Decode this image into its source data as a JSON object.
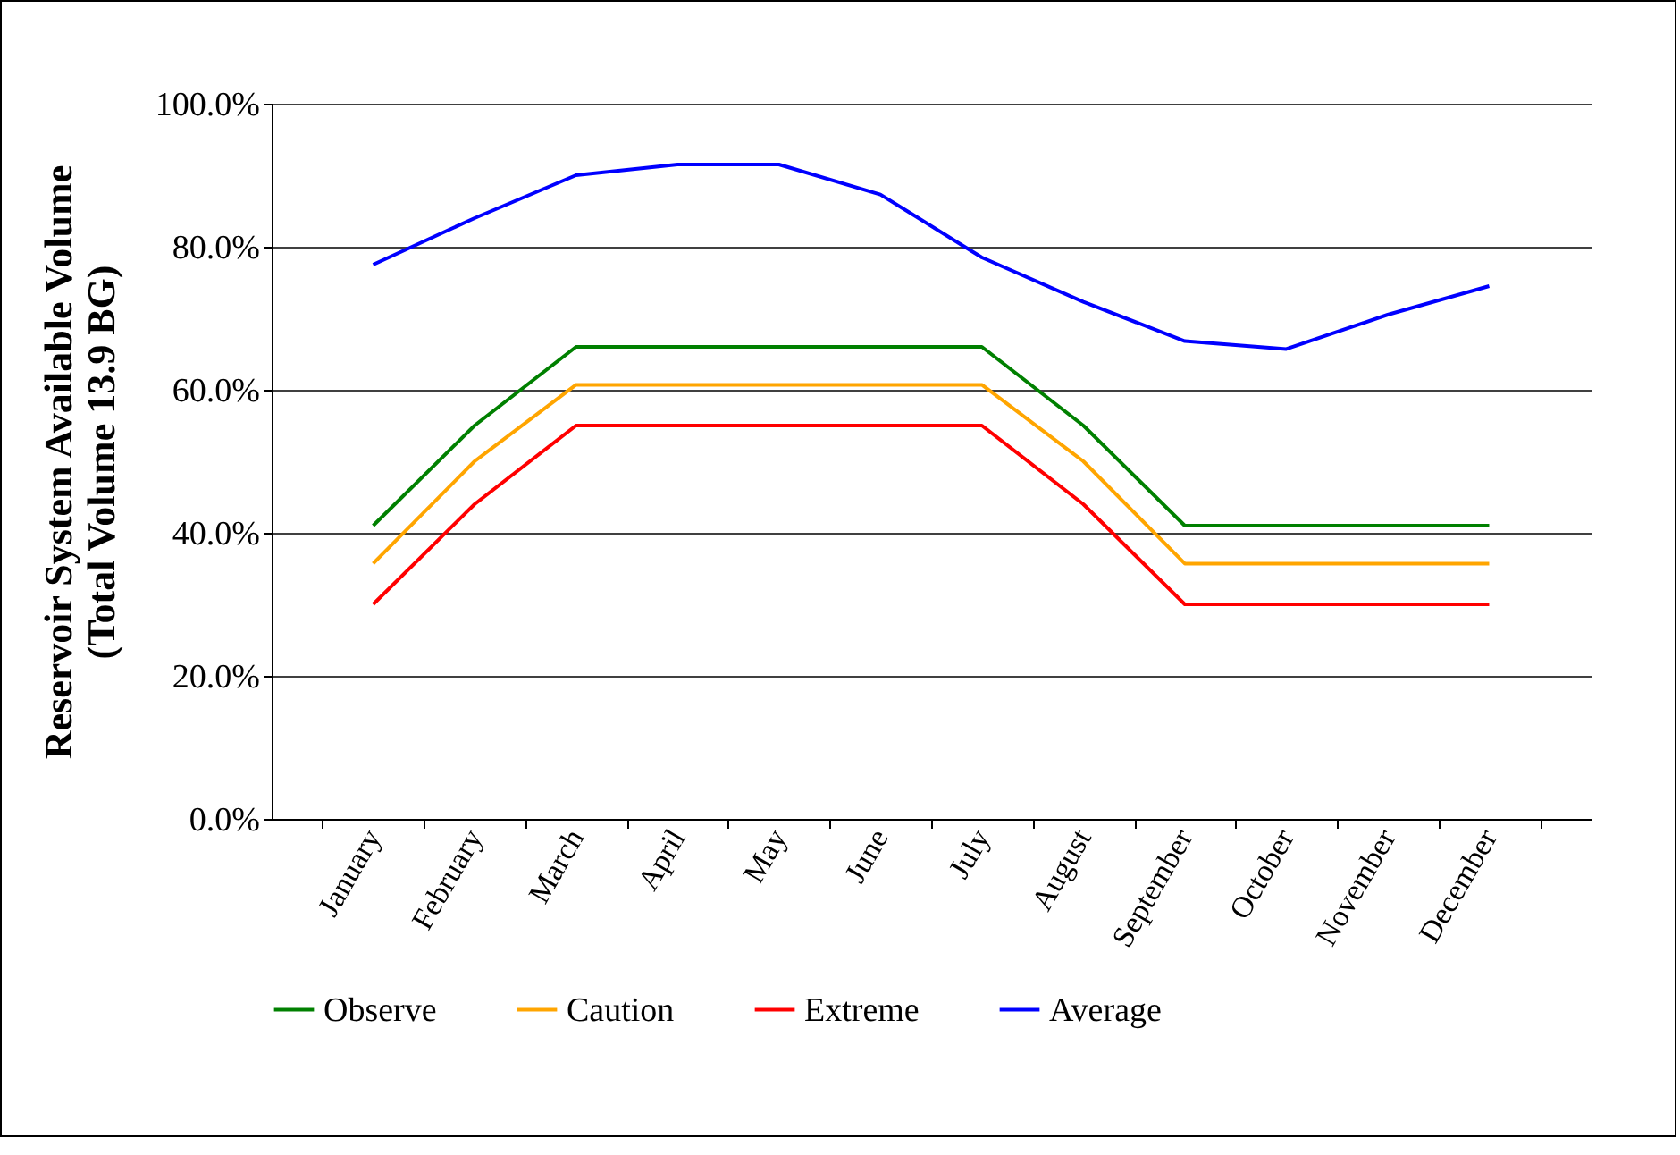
{
  "chart_data": {
    "type": "line",
    "ylabel": "Reservoir System Available Volume\n(Total Volume 13.9 BG)",
    "categories": [
      "January",
      "February",
      "March",
      "April",
      "May",
      "June",
      "July",
      "August",
      "September",
      "October",
      "November",
      "December"
    ],
    "series": [
      {
        "name": "Observe",
        "color": "#008000",
        "values": [
          41,
          55,
          66,
          66,
          66,
          66,
          66,
          55,
          41,
          41,
          41,
          41
        ]
      },
      {
        "name": "Caution",
        "color": "#ffa500",
        "values": [
          35.7,
          50,
          60.7,
          60.7,
          60.7,
          60.7,
          60.7,
          50,
          35.7,
          35.7,
          35.7,
          35.7
        ]
      },
      {
        "name": "Extreme",
        "color": "#ff0000",
        "values": [
          30,
          44,
          55,
          55,
          55,
          55,
          55,
          44,
          30,
          30,
          30,
          30
        ]
      },
      {
        "name": "Average",
        "color": "#0000ff",
        "values": [
          77.5,
          84,
          90,
          91.5,
          91.5,
          87.3,
          78.5,
          72.3,
          66.8,
          65.7,
          70.5,
          74.5
        ]
      }
    ],
    "ylim": [
      0,
      100
    ],
    "yticks": [
      {
        "value": 0,
        "label": "0.0%"
      },
      {
        "value": 20,
        "label": "20.0%"
      },
      {
        "value": 40,
        "label": "40.0%"
      },
      {
        "value": 60,
        "label": "60.0%"
      },
      {
        "value": 80,
        "label": "80.0%"
      },
      {
        "value": 100,
        "label": "100.0%"
      }
    ],
    "grid": "y",
    "legend": "bottom",
    "marker": "none",
    "line_style": "solid"
  }
}
